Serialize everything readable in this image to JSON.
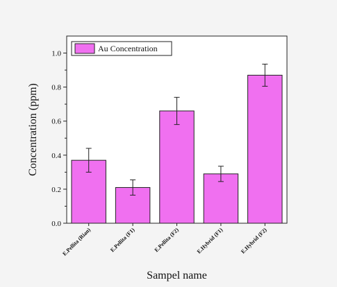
{
  "chart_data": {
    "type": "bar",
    "categories": [
      "E.Pellita (Rian)",
      "E.Pellita (F1)",
      "E.Pellita (F2)",
      "E.Hybrid (F1)",
      "E.Hybrid (F2)"
    ],
    "series": [
      {
        "name": "Au Concentration",
        "values": [
          0.37,
          0.21,
          0.66,
          0.29,
          0.87
        ],
        "error": [
          0.07,
          0.045,
          0.08,
          0.045,
          0.065
        ]
      }
    ],
    "xlabel": "Sampel name",
    "ylabel": "Concentration (ppm)",
    "ylim": [
      0,
      1.1
    ],
    "yticks": [
      0.0,
      0.2,
      0.4,
      0.6,
      0.8,
      1.0
    ],
    "ytick_labels": [
      "0.0",
      "0.2",
      "0.4",
      "0.6",
      "0.8",
      "1.0"
    ],
    "grid": false,
    "legend": "top-left",
    "colors": {
      "bar_fill": "#f070f0",
      "bar_stroke": "#222222",
      "frame": "#222222",
      "plot_background": "#ffffff"
    }
  }
}
